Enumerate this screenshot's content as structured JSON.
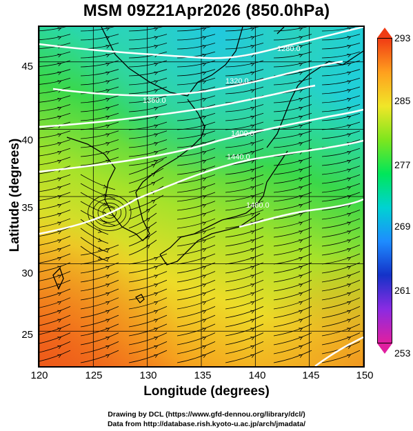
{
  "title": "MSM 09Z21Apr2026 (850.0hPa)",
  "x_axis": {
    "label": "Longitude (degrees)",
    "ticks": [
      "120",
      "125",
      "130",
      "135",
      "140",
      "145",
      "150"
    ],
    "range": [
      120,
      150
    ]
  },
  "y_axis": {
    "label": "Latitude (degrees)",
    "ticks": [
      "25",
      "30",
      "35",
      "40",
      "45"
    ],
    "range": [
      22.4,
      47.6
    ]
  },
  "colorbar": {
    "ticks": [
      "293",
      "285",
      "277",
      "269",
      "261",
      "253"
    ],
    "range": [
      253,
      293
    ],
    "unit_hint": "temperature (K)",
    "colors": [
      "#e01fa0",
      "#8a2be2",
      "#1432c8",
      "#1e8cff",
      "#00d2d2",
      "#00e65a",
      "#7de61e",
      "#f0e628",
      "#ffa01e",
      "#f03c14"
    ]
  },
  "geopotential_contours": {
    "color": "#ffffff",
    "labels": [
      "1280.0",
      "1320.0",
      "1360.0",
      "1400.0",
      "1440.0",
      "1480.0"
    ]
  },
  "credits": {
    "line1": "Drawing by DCL (https://www.gfd-dennou.org/library/dcl/)",
    "line2": "Data from http://database.rish.kyoto-u.ac.jp/arch/jmadata/"
  }
}
